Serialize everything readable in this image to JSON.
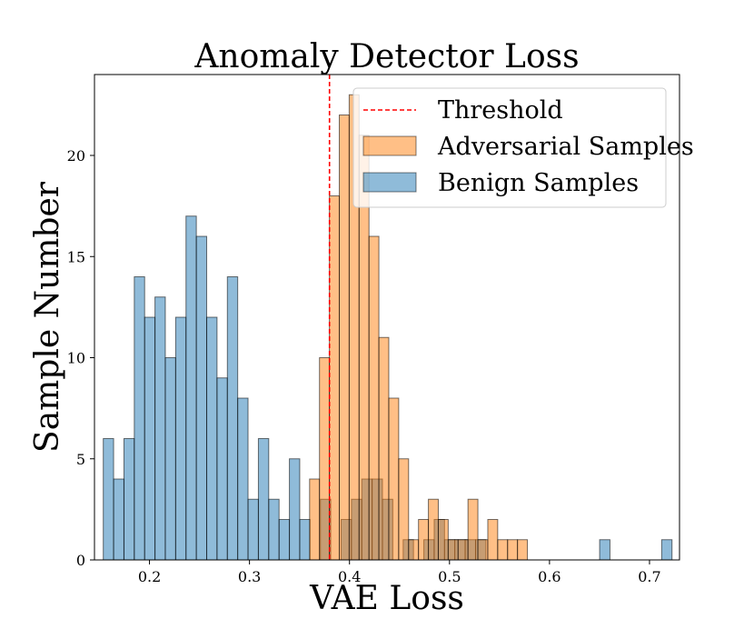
{
  "chart_data": {
    "type": "histogram",
    "title": "Anomaly Detector Loss",
    "xlabel": "VAE Loss",
    "ylabel": "Sample Number",
    "xlim": [
      0.145,
      0.73
    ],
    "ylim": [
      0,
      24
    ],
    "xticks": [
      0.2,
      0.3,
      0.4,
      0.5,
      0.6,
      0.7
    ],
    "xtick_labels": [
      "0.2",
      "0.3",
      "0.4",
      "0.5",
      "0.6",
      "0.7"
    ],
    "yticks": [
      0,
      5,
      10,
      15,
      20
    ],
    "ytick_labels": [
      "0",
      "5",
      "10",
      "15",
      "20"
    ],
    "threshold": {
      "label": "Threshold",
      "x": 0.38,
      "color": "#ff0000"
    },
    "legend_position": "top-right",
    "series": [
      {
        "name": "Benign Samples",
        "color": "#1f77b4",
        "alpha": 0.5,
        "bin_start": 0.1538,
        "bin_width": 0.01034,
        "counts": [
          6,
          4,
          6,
          14,
          12,
          13,
          10,
          12,
          17,
          16,
          12,
          9,
          14,
          8,
          3,
          6,
          3,
          2,
          5,
          2,
          0,
          3,
          0,
          2,
          3,
          4,
          4,
          3,
          0,
          1,
          0,
          1,
          2,
          1,
          1,
          1,
          1,
          0,
          0,
          0,
          0,
          0,
          0,
          0,
          0,
          0,
          0,
          0,
          1,
          0,
          0,
          0,
          0,
          0,
          1
        ]
      },
      {
        "name": "Adversarial Samples",
        "color": "#ff7f0e",
        "alpha": 0.5,
        "bin_start": 0.3601,
        "bin_width": 0.0099,
        "counts": [
          4,
          10,
          18,
          22,
          23,
          21,
          16,
          11,
          8,
          5,
          1,
          2,
          3,
          2,
          1,
          1,
          3,
          1,
          2,
          1,
          1,
          1,
          0,
          0,
          0,
          0,
          0,
          0,
          0,
          0,
          0,
          0,
          0,
          0,
          0,
          0,
          0
        ]
      }
    ]
  }
}
